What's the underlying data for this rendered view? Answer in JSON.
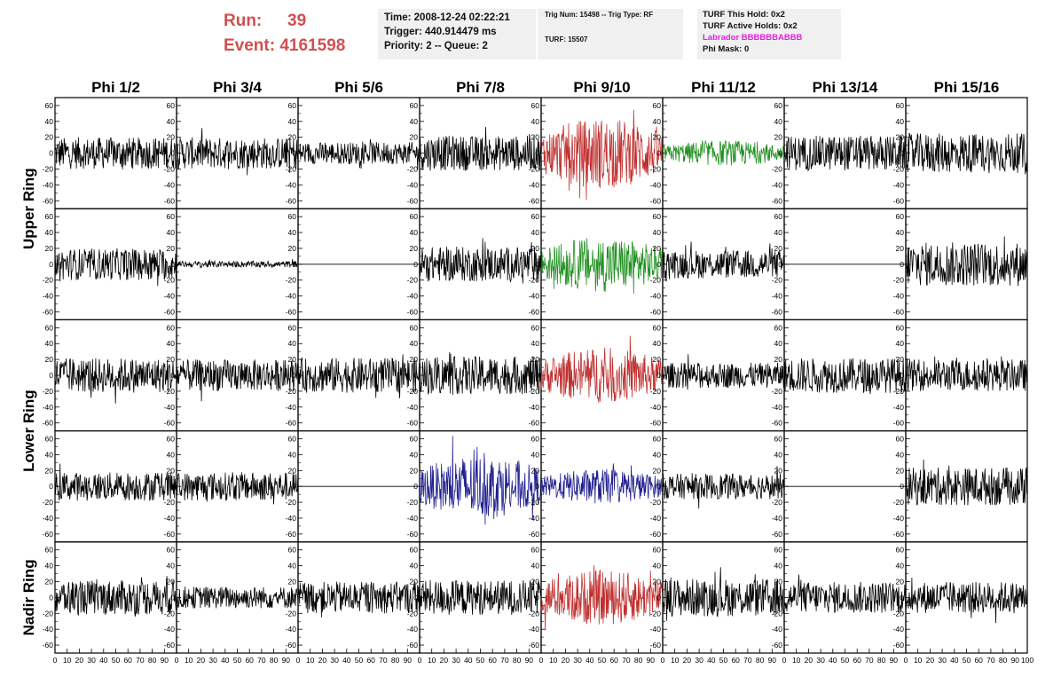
{
  "run_info": {
    "run_label": "Run:",
    "run_value": "39",
    "event_label": "Event:",
    "event_value": "4161598"
  },
  "time_box": {
    "time": "Time: 2008-12-24 02:22:21",
    "trigger": "Trigger: 440.914479 ms",
    "priority": "Priority: 2 -- Queue: 2"
  },
  "trig_box": {
    "trig": "Trig Num: 15498 -- Trig Type: RF",
    "turf": "TURF: 15507"
  },
  "turf_box": {
    "this_hold": "TURF This Hold: 0x2",
    "active_holds": "TURF Active Holds: 0x2",
    "labrador": "Labrador BBBBBBABBB",
    "phi_mask": "Phi Mask: 0"
  },
  "colors": {
    "normal": "#000000",
    "triggered_red": "#c03030",
    "triggered_green": "#209020",
    "triggered_blue": "#202090",
    "run_info": "#d05050",
    "labrador": "#e020e0",
    "box_bg": "#f0f0f0"
  },
  "chart_data": {
    "type": "line",
    "columns": [
      "Phi 1/2",
      "Phi 3/4",
      "Phi 5/6",
      "Phi 7/8",
      "Phi 9/10",
      "Phi 11/12",
      "Phi 13/14",
      "Phi 15/16"
    ],
    "rows": [
      "Upper Ring",
      "Lower Ring",
      "Nadir Ring"
    ],
    "row_spans": [
      2,
      2,
      1
    ],
    "xlim": [
      0,
      100
    ],
    "ylim": [
      -70,
      70
    ],
    "x_ticks": [
      0,
      10,
      20,
      30,
      40,
      50,
      60,
      70,
      80,
      90,
      100
    ],
    "x_tick_labels": [
      "0",
      "10",
      "20",
      "30",
      "40",
      "50",
      "60",
      "70",
      "80",
      "90",
      "100"
    ],
    "y_ticks": [
      -60,
      -40,
      -20,
      0,
      20,
      40,
      60
    ],
    "y_tick_labels": [
      "-60",
      "-40",
      "-20",
      "0",
      "20",
      "40",
      "60"
    ],
    "panels": [
      [
        {
          "amp": 20,
          "color": "normal"
        },
        {
          "amp": 20,
          "color": "normal"
        },
        {
          "amp": 14,
          "color": "normal"
        },
        {
          "amp": 22,
          "color": "normal"
        },
        {
          "amp": 45,
          "color": "triggered_red"
        },
        {
          "amp": 16,
          "color": "triggered_green"
        },
        {
          "amp": 22,
          "color": "normal"
        },
        {
          "amp": 25,
          "color": "normal"
        }
      ],
      [
        {
          "amp": 20,
          "color": "normal"
        },
        {
          "amp": 4,
          "color": "normal"
        },
        {
          "amp": 0,
          "color": "normal"
        },
        {
          "amp": 22,
          "color": "normal"
        },
        {
          "amp": 35,
          "color": "triggered_green"
        },
        {
          "amp": 18,
          "color": "normal"
        },
        {
          "amp": 0,
          "color": "normal"
        },
        {
          "amp": 28,
          "color": "normal"
        }
      ],
      [
        {
          "amp": 22,
          "color": "normal"
        },
        {
          "amp": 20,
          "color": "normal"
        },
        {
          "amp": 22,
          "color": "normal"
        },
        {
          "amp": 24,
          "color": "normal"
        },
        {
          "amp": 35,
          "color": "triggered_red"
        },
        {
          "amp": 16,
          "color": "normal"
        },
        {
          "amp": 22,
          "color": "normal"
        },
        {
          "amp": 20,
          "color": "normal"
        }
      ],
      [
        {
          "amp": 18,
          "color": "normal"
        },
        {
          "amp": 18,
          "color": "normal"
        },
        {
          "amp": 0,
          "color": "normal"
        },
        {
          "amp": 40,
          "color": "triggered_blue"
        },
        {
          "amp": 22,
          "color": "triggered_blue"
        },
        {
          "amp": 16,
          "color": "normal"
        },
        {
          "amp": 0,
          "color": "normal"
        },
        {
          "amp": 24,
          "color": "normal"
        }
      ],
      [
        {
          "amp": 22,
          "color": "normal"
        },
        {
          "amp": 14,
          "color": "normal"
        },
        {
          "amp": 20,
          "color": "normal"
        },
        {
          "amp": 22,
          "color": "normal"
        },
        {
          "amp": 35,
          "color": "triggered_red"
        },
        {
          "amp": 24,
          "color": "normal"
        },
        {
          "amp": 20,
          "color": "normal"
        },
        {
          "amp": 20,
          "color": "normal"
        }
      ]
    ]
  }
}
